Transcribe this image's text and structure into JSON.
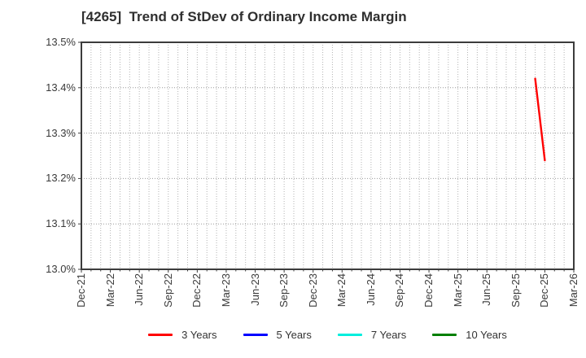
{
  "window": {
    "background": "#ffffff"
  },
  "chart_data": {
    "type": "line",
    "title": "[4265]  Trend of StDev of Ordinary Income Margin",
    "title_color": "#2f2f2f",
    "axis_border_color": "#3c3c3c",
    "tick_label_color": "#3a3a3a",
    "grid_color_vertical": "#b3b3b3",
    "grid_color_horizontal": "#999999",
    "grid_style": "dotted",
    "ylabel": "",
    "xlabel": "",
    "ylim": [
      13.0,
      13.5
    ],
    "y_ticks": [
      "13.0%",
      "13.1%",
      "13.2%",
      "13.3%",
      "13.4%",
      "13.5%"
    ],
    "y_tick_values": [
      13.0,
      13.1,
      13.2,
      13.3,
      13.4,
      13.5
    ],
    "x_ticks": [
      "Dec-21",
      "Mar-22",
      "Jun-22",
      "Sep-22",
      "Dec-22",
      "Mar-23",
      "Jun-23",
      "Sep-23",
      "Dec-23",
      "Mar-24",
      "Jun-24",
      "Sep-24",
      "Dec-24",
      "Mar-25",
      "Jun-25",
      "Sep-25",
      "Dec-25",
      "Mar-26"
    ],
    "months_per_tick": 3,
    "x_total_months": 51,
    "legend_position": "bottom-center",
    "series": [
      {
        "name": "3 Years",
        "color": "#ff0000",
        "points": [
          {
            "month": "Nov-25",
            "month_index": 47,
            "value": 13.42
          },
          {
            "month": "Dec-25",
            "month_index": 48,
            "value": 13.24
          }
        ]
      },
      {
        "name": "5 Years",
        "color": "#0000ff",
        "points": []
      },
      {
        "name": "7 Years",
        "color": "#00eedd",
        "points": []
      },
      {
        "name": "10 Years",
        "color": "#007f00",
        "points": []
      }
    ]
  }
}
